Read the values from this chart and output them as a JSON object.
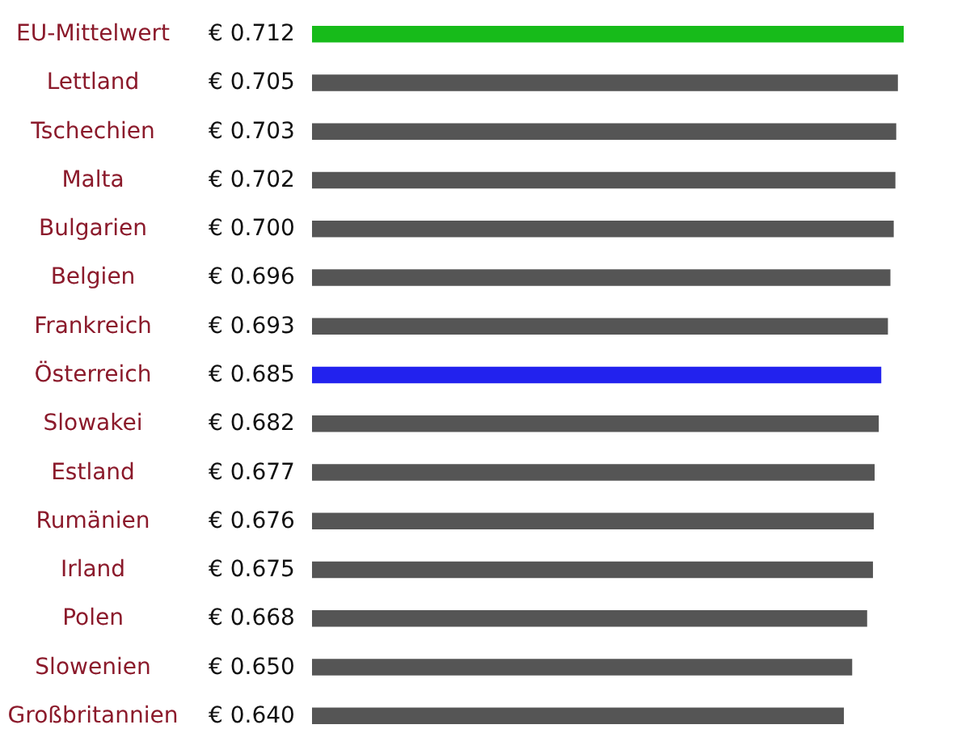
{
  "chart_data": {
    "type": "bar",
    "orientation": "horizontal",
    "categories": [
      "EU-Mittelwert",
      "Lettland",
      "Tschechien",
      "Malta",
      "Bulgarien",
      "Belgien",
      "Frankreich",
      "Österreich",
      "Slowakei",
      "Estland",
      "Rumänien",
      "Irland",
      "Polen",
      "Slowenien",
      "Großbritannien"
    ],
    "values": [
      0.712,
      0.705,
      0.703,
      0.702,
      0.7,
      0.696,
      0.693,
      0.685,
      0.682,
      0.677,
      0.676,
      0.675,
      0.668,
      0.65,
      0.64
    ],
    "value_labels": [
      "€ 0.712",
      "€ 0.705",
      "€ 0.703",
      "€ 0.702",
      "€ 0.700",
      "€ 0.696",
      "€ 0.693",
      "€ 0.685",
      "€ 0.682",
      "€ 0.677",
      "€ 0.676",
      "€ 0.675",
      "€ 0.668",
      "€ 0.650",
      "€ 0.640"
    ],
    "colors": [
      "#17bb1a",
      "#555555",
      "#555555",
      "#555555",
      "#555555",
      "#555555",
      "#555555",
      "#2222ee",
      "#555555",
      "#555555",
      "#555555",
      "#555555",
      "#555555",
      "#555555",
      "#555555"
    ]
  }
}
